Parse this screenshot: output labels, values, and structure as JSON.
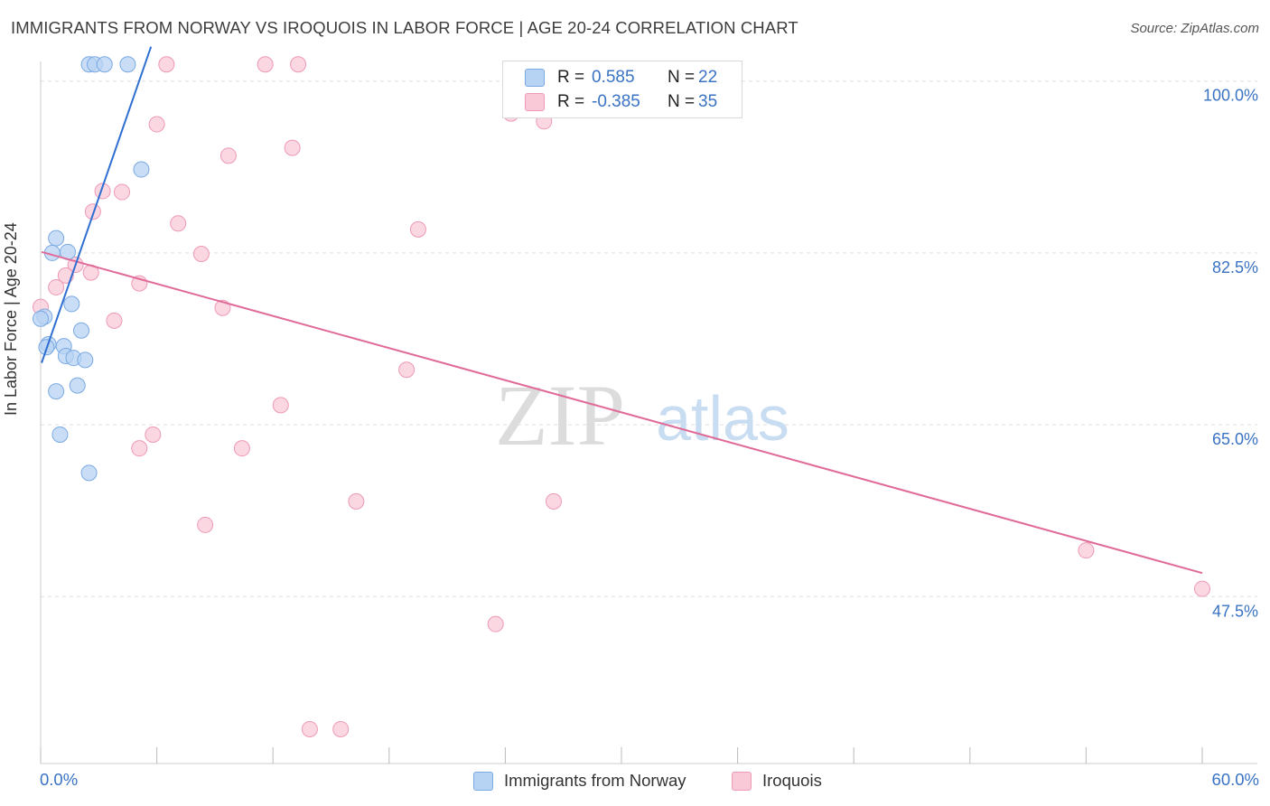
{
  "title": "IMMIGRANTS FROM NORWAY VS IROQUOIS IN LABOR FORCE | AGE 20-24 CORRELATION CHART",
  "source": "Source: ZipAtlas.com",
  "watermark": {
    "zip": "ZIP",
    "atlas": "atlas"
  },
  "legend": {
    "r_label": "R =",
    "n_label": "N =",
    "rows": [
      {
        "r": "0.585",
        "n": "22"
      },
      {
        "r": "-0.385",
        "n": "35"
      }
    ]
  },
  "colors": {
    "blue_fill": "#b7d3f3",
    "blue_stroke": "#7aa9e3",
    "blue_line": "#2f6fd1",
    "pink_fill": "#f9c9d8",
    "pink_stroke": "#ee99b6",
    "pink_line": "#e06a98",
    "axis_text": "#3a73c4",
    "grid": "#dddddd"
  },
  "chart_data": {
    "type": "scatter",
    "title": "IMMIGRANTS FROM NORWAY VS IROQUOIS IN LABOR FORCE | AGE 20-24 CORRELATION CHART",
    "xlabel": "",
    "ylabel": "In Labor Force | Age 20-24",
    "xlim": [
      0,
      60
    ],
    "ylim": [
      30.5,
      102
    ],
    "x_tick_labels": [
      "0.0%",
      "60.0%"
    ],
    "y_ticks": [
      {
        "value": 100.0,
        "label": "100.0%"
      },
      {
        "value": 82.5,
        "label": "82.5%"
      },
      {
        "value": 65.0,
        "label": "65.0%"
      },
      {
        "value": 47.5,
        "label": "47.5%"
      }
    ],
    "series": [
      {
        "name": "Immigrants from Norway",
        "color": "#7aa9e3",
        "r": 0.585,
        "n": 22,
        "trendline": {
          "x": [
            0.05,
            5.7
          ],
          "y": [
            71.3,
            103.5
          ]
        },
        "points": [
          {
            "x": 2.5,
            "y": 101.7
          },
          {
            "x": 2.8,
            "y": 101.7
          },
          {
            "x": 3.3,
            "y": 101.7
          },
          {
            "x": 4.5,
            "y": 101.7
          },
          {
            "x": 5.2,
            "y": 91.0
          },
          {
            "x": 0.8,
            "y": 84.0
          },
          {
            "x": 0.6,
            "y": 82.5
          },
          {
            "x": 1.4,
            "y": 82.6
          },
          {
            "x": 1.6,
            "y": 77.3
          },
          {
            "x": 0.2,
            "y": 76.0
          },
          {
            "x": 0.0,
            "y": 75.8
          },
          {
            "x": 2.1,
            "y": 74.6
          },
          {
            "x": 0.4,
            "y": 73.2
          },
          {
            "x": 0.3,
            "y": 72.9
          },
          {
            "x": 1.2,
            "y": 73.0
          },
          {
            "x": 1.3,
            "y": 72.0
          },
          {
            "x": 1.7,
            "y": 71.8
          },
          {
            "x": 2.3,
            "y": 71.6
          },
          {
            "x": 1.9,
            "y": 69.0
          },
          {
            "x": 0.8,
            "y": 68.4
          },
          {
            "x": 1.0,
            "y": 64.0
          },
          {
            "x": 2.5,
            "y": 60.1
          }
        ]
      },
      {
        "name": "Iroquois",
        "color": "#ee99b6",
        "r": -0.385,
        "n": 35,
        "trendline": {
          "x": [
            0.05,
            60.0
          ],
          "y": [
            82.6,
            49.9
          ]
        },
        "points": [
          {
            "x": 6.5,
            "y": 101.7
          },
          {
            "x": 11.6,
            "y": 101.7
          },
          {
            "x": 13.3,
            "y": 101.7
          },
          {
            "x": 24.3,
            "y": 96.7
          },
          {
            "x": 26.0,
            "y": 95.9
          },
          {
            "x": 6.0,
            "y": 95.6
          },
          {
            "x": 13.0,
            "y": 93.2
          },
          {
            "x": 9.7,
            "y": 92.4
          },
          {
            "x": 3.2,
            "y": 88.8
          },
          {
            "x": 4.2,
            "y": 88.7
          },
          {
            "x": 2.7,
            "y": 86.7
          },
          {
            "x": 7.1,
            "y": 85.5
          },
          {
            "x": 19.5,
            "y": 84.9
          },
          {
            "x": 8.3,
            "y": 82.4
          },
          {
            "x": 1.8,
            "y": 81.3
          },
          {
            "x": 2.6,
            "y": 80.5
          },
          {
            "x": 1.3,
            "y": 80.2
          },
          {
            "x": 5.1,
            "y": 79.4
          },
          {
            "x": 0.8,
            "y": 79.0
          },
          {
            "x": 0.0,
            "y": 77.0
          },
          {
            "x": 9.4,
            "y": 76.9
          },
          {
            "x": 3.8,
            "y": 75.6
          },
          {
            "x": 18.9,
            "y": 70.6
          },
          {
            "x": 12.4,
            "y": 67.0
          },
          {
            "x": 5.8,
            "y": 64.0
          },
          {
            "x": 5.1,
            "y": 62.6
          },
          {
            "x": 10.4,
            "y": 62.6
          },
          {
            "x": 16.3,
            "y": 57.2
          },
          {
            "x": 26.5,
            "y": 57.2
          },
          {
            "x": 8.5,
            "y": 54.8
          },
          {
            "x": 54.0,
            "y": 52.2
          },
          {
            "x": 60.0,
            "y": 48.3
          },
          {
            "x": 23.5,
            "y": 44.7
          },
          {
            "x": 13.9,
            "y": 34.0
          },
          {
            "x": 15.5,
            "y": 34.0
          }
        ]
      }
    ]
  },
  "bottom_legend": [
    {
      "label": "Immigrants from Norway"
    },
    {
      "label": "Iroquois"
    }
  ]
}
